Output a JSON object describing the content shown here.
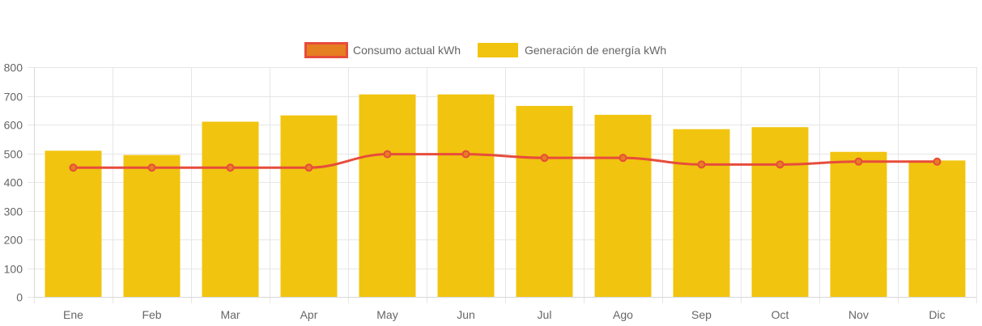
{
  "chart_data": {
    "type": "bar",
    "categories": [
      "Ene",
      "Feb",
      "Mar",
      "Apr",
      "May",
      "Jun",
      "Jul",
      "Ago",
      "Sep",
      "Oct",
      "Nov",
      "Dic"
    ],
    "series": [
      {
        "name": "Consumo actual kWh",
        "type": "line",
        "values": [
          450,
          450,
          450,
          450,
          497,
          497,
          484,
          484,
          461,
          461,
          471,
          471
        ],
        "color": "#e74c3c",
        "legend_fill": "#e67e22"
      },
      {
        "name": "Generación de energía kWh",
        "type": "bar",
        "values": [
          509,
          494,
          610,
          632,
          705,
          705,
          665,
          634,
          584,
          591,
          505,
          475
        ],
        "color": "#f1c40f"
      }
    ],
    "ylim": [
      0,
      800
    ],
    "yticks": [
      0,
      100,
      200,
      300,
      400,
      500,
      600,
      700,
      800
    ],
    "grid": true,
    "legend_position": "top-center",
    "title": "",
    "xlabel": "",
    "ylabel": ""
  }
}
